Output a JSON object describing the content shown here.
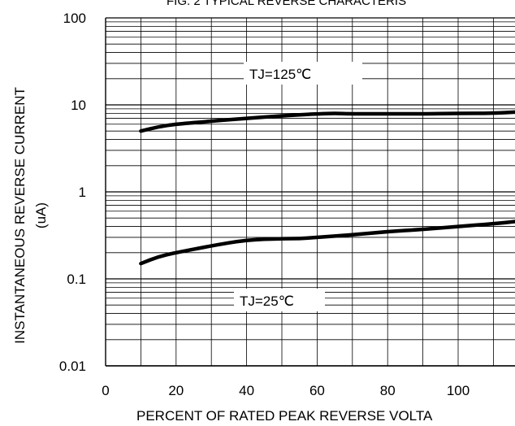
{
  "chart_data": {
    "type": "line",
    "title": "FIG. 2 TYPICAL REVERSE CHARACTERIS",
    "xlabel": "PERCENT OF RATED PEAK REVERSE VOLTA",
    "ylabel": "INSTANTANEOUS REVERSE CURRENT",
    "ylabel_unit": "(uA)",
    "x_ticks": [
      "0",
      "20",
      "40",
      "60",
      "80",
      "100"
    ],
    "y_ticks": [
      "100",
      "10",
      "1",
      "0.1",
      "0.01"
    ],
    "xlim": [
      0,
      117
    ],
    "ylim": [
      0.01,
      100
    ],
    "y_scale": "log",
    "grid": true,
    "series": [
      {
        "name": "TJ=125℃",
        "x": [
          10,
          15,
          20,
          30,
          40,
          50,
          60,
          65,
          70,
          80,
          90,
          100,
          110,
          117
        ],
        "y": [
          5.0,
          5.6,
          6.0,
          6.5,
          7.0,
          7.5,
          7.9,
          8.0,
          7.9,
          7.9,
          7.9,
          8.0,
          8.0,
          8.3
        ]
      },
      {
        "name": "TJ=25℃",
        "x": [
          10,
          15,
          20,
          30,
          40,
          50,
          55,
          60,
          70,
          80,
          90,
          100,
          110,
          117
        ],
        "y": [
          0.15,
          0.18,
          0.2,
          0.24,
          0.28,
          0.29,
          0.29,
          0.3,
          0.32,
          0.35,
          0.37,
          0.4,
          0.43,
          0.46
        ]
      }
    ]
  }
}
